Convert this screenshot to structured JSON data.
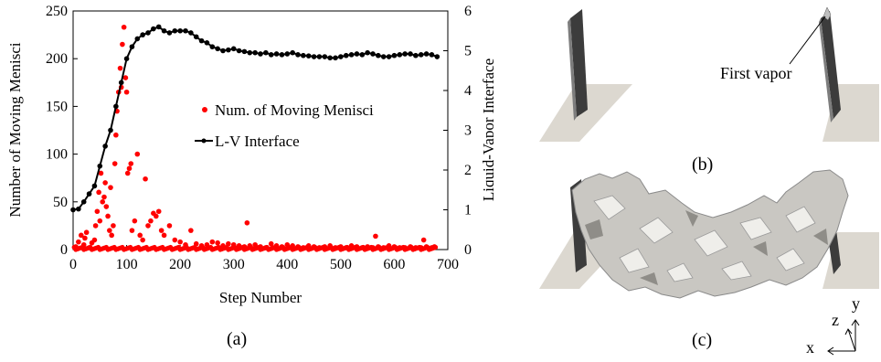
{
  "chart_data": {
    "type": "scatter",
    "xlabel": "Step Number",
    "ylabel": "Number of Moving Menisci",
    "y2label": "Liquid-Vapor Interface",
    "xlim": [
      0,
      700
    ],
    "ylim": [
      0,
      250
    ],
    "y2lim": [
      0,
      6
    ],
    "xticks": [
      "0",
      "100",
      "200",
      "300",
      "400",
      "500",
      "600",
      "700"
    ],
    "yticks": [
      "0",
      "50",
      "100",
      "150",
      "200",
      "250"
    ],
    "y2ticks": [
      "0",
      "1",
      "2",
      "3",
      "4",
      "5",
      "6"
    ],
    "grid": false,
    "legend_position": "center-right",
    "series": [
      {
        "name": "Num. of Moving Menisci",
        "axis": "left",
        "style": "scatter",
        "color": "#ff0000",
        "x": [
          5,
          10,
          15,
          20,
          22,
          25,
          30,
          35,
          40,
          42,
          45,
          48,
          50,
          52,
          55,
          58,
          60,
          62,
          65,
          68,
          70,
          72,
          75,
          78,
          80,
          82,
          85,
          88,
          90,
          92,
          95,
          98,
          100,
          102,
          105,
          108,
          110,
          115,
          120,
          125,
          130,
          135,
          140,
          145,
          150,
          155,
          160,
          165,
          170,
          180,
          190,
          200,
          210,
          220,
          230,
          240,
          250,
          260,
          270,
          280,
          290,
          300,
          310,
          320,
          325,
          330,
          340,
          350,
          360,
          370,
          380,
          390,
          400,
          410,
          420,
          430,
          440,
          450,
          460,
          470,
          480,
          490,
          500,
          510,
          520,
          530,
          540,
          550,
          560,
          565,
          570,
          580,
          590,
          600,
          610,
          620,
          630,
          640,
          650,
          655,
          660,
          670,
          675
        ],
        "y": [
          3,
          8,
          15,
          5,
          12,
          18,
          2,
          7,
          10,
          25,
          40,
          60,
          30,
          80,
          50,
          55,
          70,
          45,
          35,
          20,
          65,
          15,
          25,
          90,
          120,
          145,
          165,
          190,
          170,
          215,
          233,
          180,
          165,
          80,
          85,
          90,
          20,
          30,
          100,
          15,
          10,
          74,
          25,
          30,
          38,
          35,
          40,
          20,
          15,
          25,
          10,
          8,
          5,
          20,
          6,
          4,
          5,
          8,
          7,
          4,
          6,
          5,
          4,
          3,
          28,
          4,
          5,
          3,
          2,
          6,
          4,
          3,
          5,
          4,
          3,
          2,
          4,
          3,
          2,
          3,
          4,
          2,
          3,
          2,
          4,
          3,
          2,
          3,
          2,
          14,
          3,
          2,
          4,
          3,
          2,
          2,
          3,
          2,
          2,
          10,
          3,
          2,
          3
        ]
      },
      {
        "name": "L-V Interface",
        "axis": "right",
        "style": "line-marker",
        "color": "#000000",
        "x": [
          0,
          10,
          20,
          30,
          40,
          50,
          60,
          70,
          80,
          90,
          100,
          110,
          120,
          130,
          140,
          150,
          160,
          170,
          180,
          190,
          200,
          210,
          220,
          230,
          240,
          250,
          260,
          270,
          280,
          290,
          300,
          310,
          320,
          330,
          340,
          350,
          360,
          370,
          380,
          390,
          400,
          410,
          420,
          430,
          440,
          450,
          460,
          470,
          480,
          490,
          500,
          510,
          520,
          530,
          540,
          550,
          560,
          570,
          580,
          590,
          600,
          610,
          620,
          630,
          640,
          650,
          660,
          670,
          680
        ],
        "y": [
          1.0,
          1.02,
          1.2,
          1.4,
          1.6,
          2.1,
          2.6,
          3.0,
          3.6,
          4.2,
          4.8,
          5.1,
          5.3,
          5.4,
          5.45,
          5.55,
          5.6,
          5.5,
          5.45,
          5.5,
          5.5,
          5.5,
          5.45,
          5.35,
          5.25,
          5.2,
          5.1,
          5.05,
          5.0,
          5.02,
          5.05,
          5.0,
          4.98,
          4.95,
          4.95,
          4.92,
          4.95,
          4.9,
          4.92,
          4.9,
          4.92,
          4.95,
          4.9,
          4.88,
          4.87,
          4.85,
          4.85,
          4.85,
          4.82,
          4.82,
          4.85,
          4.88,
          4.9,
          4.92,
          4.9,
          4.95,
          4.92,
          4.88,
          4.85,
          4.85,
          4.88,
          4.9,
          4.92,
          4.92,
          4.88,
          4.9,
          4.92,
          4.9,
          4.85
        ]
      }
    ]
  },
  "panels": {
    "a": "(a)",
    "b": "(b)",
    "c": "(c)"
  },
  "annotation": "First vapor",
  "axes_triad": {
    "x": "x",
    "y": "y",
    "z": "z"
  }
}
